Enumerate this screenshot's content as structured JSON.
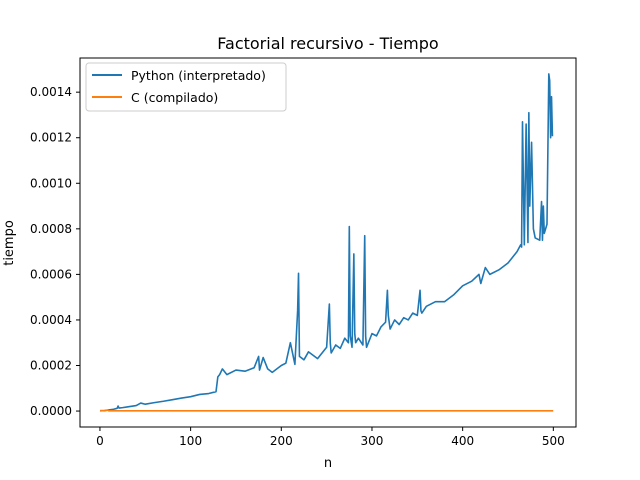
{
  "chart_data": {
    "type": "line",
    "title": "Factorial recursivo - Tiempo",
    "xlabel": "n",
    "ylabel": "tiempo",
    "xlim": [
      -22,
      525
    ],
    "ylim": [
      -7e-05,
      0.00155
    ],
    "xticks": [
      0,
      100,
      200,
      300,
      400,
      500
    ],
    "xtick_labels": [
      "0",
      "100",
      "200",
      "300",
      "400",
      "500"
    ],
    "yticks": [
      0,
      0.0002,
      0.0004,
      0.0006,
      0.0008,
      0.001,
      0.0012,
      0.0014
    ],
    "ytick_labels": [
      "0.0000",
      "0.0002",
      "0.0004",
      "0.0006",
      "0.0008",
      "0.0010",
      "0.0012",
      "0.0014"
    ],
    "grid": false,
    "legend": "top-left",
    "series": [
      {
        "name": "Python (interpretado)",
        "color": "#1f77b4",
        "x": [
          1,
          5,
          10,
          15,
          19,
          20,
          21,
          25,
          30,
          40,
          45,
          50,
          60,
          70,
          80,
          90,
          100,
          110,
          120,
          128,
          130,
          132,
          135,
          140,
          150,
          160,
          170,
          175,
          176,
          180,
          185,
          190,
          200,
          205,
          210,
          215,
          218,
          219,
          220,
          225,
          230,
          240,
          250,
          253,
          254,
          255,
          260,
          265,
          270,
          274,
          275,
          276,
          278,
          280,
          281,
          282,
          285,
          290,
          292,
          293,
          294,
          300,
          305,
          310,
          315,
          317,
          318,
          320,
          325,
          330,
          335,
          340,
          345,
          350,
          353,
          354,
          355,
          360,
          370,
          380,
          390,
          400,
          410,
          418,
          420,
          425,
          430,
          440,
          450,
          460,
          464,
          465,
          466,
          468,
          470,
          472,
          473,
          474,
          476,
          478,
          480,
          485,
          487,
          488,
          489,
          490,
          493,
          495,
          496,
          497,
          498,
          499
        ],
        "values": [
          1e-06,
          2e-06,
          5e-06,
          8e-06,
          1.2e-05,
          2.2e-05,
          1.3e-05,
          1.5e-05,
          1.8e-05,
          2.4e-05,
          3.5e-05,
          3e-05,
          3.7e-05,
          4.3e-05,
          5e-05,
          5.7e-05,
          6.3e-05,
          7.3e-05,
          7.7e-05,
          8.5e-05,
          0.00015,
          0.00016,
          0.000185,
          0.00016,
          0.00018,
          0.000175,
          0.00019,
          0.00024,
          0.00018,
          0.000235,
          0.000185,
          0.00017,
          0.0002,
          0.00021,
          0.0003,
          0.000205,
          0.00044,
          0.000605,
          0.00024,
          0.000225,
          0.00026,
          0.00023,
          0.00028,
          0.00047,
          0.0003,
          0.000255,
          0.00029,
          0.000275,
          0.00032,
          0.0003,
          0.00081,
          0.00033,
          0.00028,
          0.00069,
          0.00034,
          0.0003,
          0.00032,
          0.00029,
          0.00077,
          0.00033,
          0.00028,
          0.00034,
          0.00033,
          0.00037,
          0.00039,
          0.00053,
          0.00042,
          0.00036,
          0.0004,
          0.00038,
          0.00041,
          0.0004,
          0.00043,
          0.00042,
          0.00053,
          0.00044,
          0.00043,
          0.00046,
          0.00048,
          0.00048,
          0.00051,
          0.00055,
          0.00057,
          0.0006,
          0.00056,
          0.00063,
          0.0006,
          0.00062,
          0.00065,
          0.0007,
          0.00073,
          0.00072,
          0.00127,
          0.00073,
          0.00126,
          0.00074,
          0.00131,
          0.0009,
          0.00118,
          0.0008,
          0.00076,
          0.00075,
          0.00092,
          0.00075,
          0.0009,
          0.00078,
          0.00082,
          0.00148,
          0.00145,
          0.0012,
          0.00138,
          0.00121
        ]
      },
      {
        "name": "C (compilado)",
        "color": "#ff7f0e",
        "x": [
          1,
          5,
          8,
          10,
          50,
          100,
          200,
          300,
          400,
          450,
          499
        ],
        "values": [
          2e-06,
          1e-06,
          4e-06,
          1e-06,
          1e-06,
          1e-06,
          1e-06,
          1e-06,
          1e-06,
          1e-06,
          1e-06
        ]
      }
    ]
  }
}
